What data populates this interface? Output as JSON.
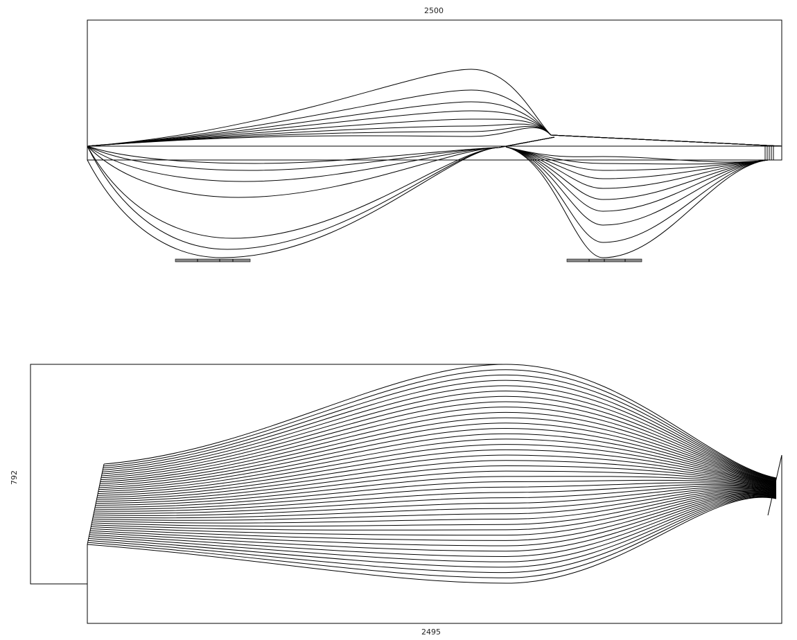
{
  "dimensions": {
    "elevation_width": "2500",
    "plan_width": "2495",
    "plan_depth": "792"
  },
  "colors": {
    "line": "#000000",
    "base_fill": "#888888"
  }
}
